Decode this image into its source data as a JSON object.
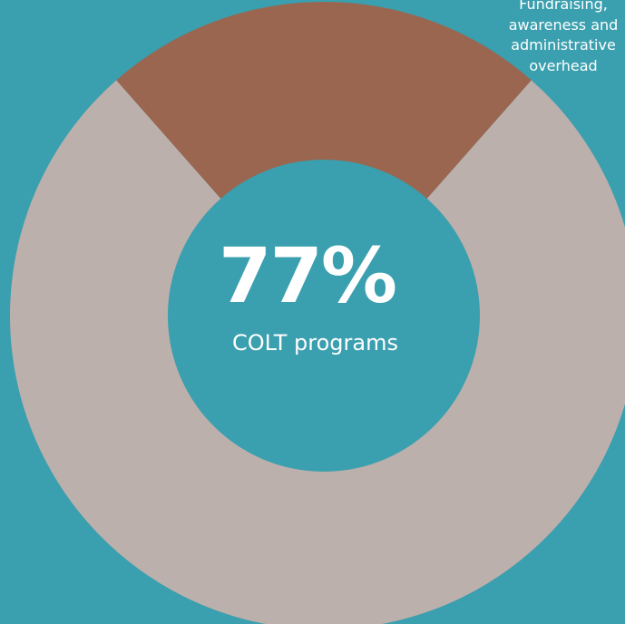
{
  "chart_data": {
    "type": "pie",
    "categories": [
      "COLT programs",
      "Fundraising, awareness and administrative overhead"
    ],
    "values": [
      77,
      23
    ],
    "colors": [
      "#bcb0ac",
      "#9a6650"
    ],
    "center": {
      "value": "77%",
      "caption": "COLT programs"
    },
    "annotation": "Fundraising,\nawareness and\nadministrative\noverhead"
  },
  "background": "#3a9fae"
}
